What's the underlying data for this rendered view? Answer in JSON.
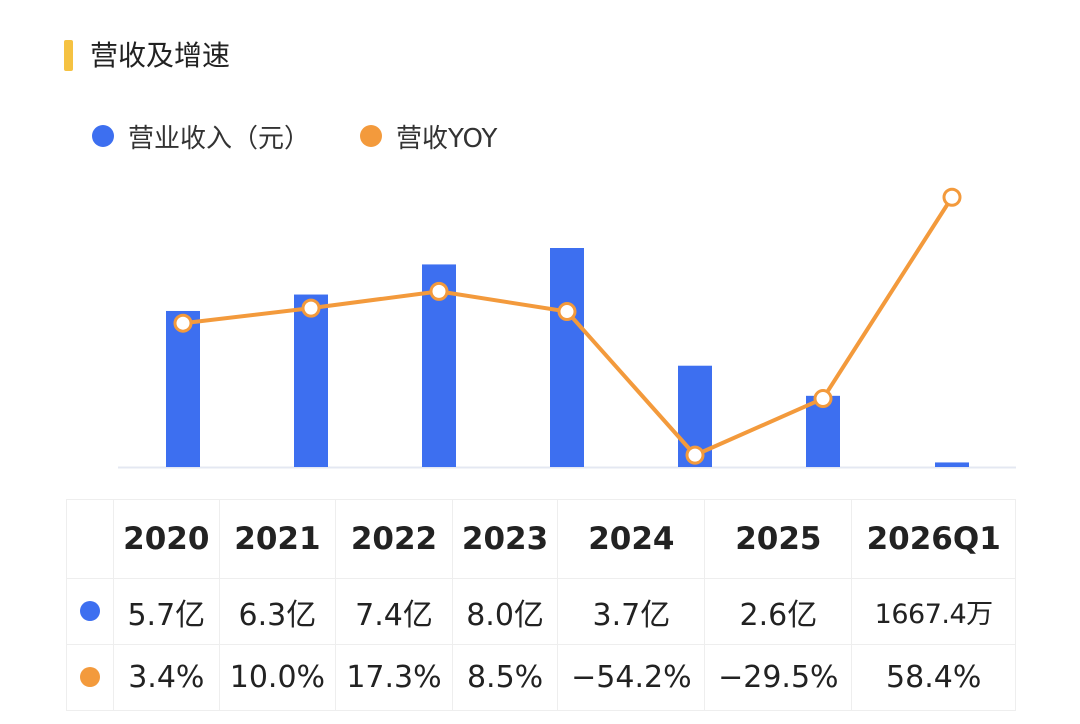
{
  "title": "营收及增速",
  "legend": {
    "revenue_label": "营业收入（元）",
    "yoy_label": "营收YOY"
  },
  "colors": {
    "revenue": "#3d6ff0",
    "yoy": "#f39a3c",
    "title_accent": "#f5c242",
    "axis": "#e4e8f2"
  },
  "chart_data": {
    "type": "bar",
    "categories": [
      "2020",
      "2021",
      "2022",
      "2023",
      "2024",
      "2025",
      "2026Q1"
    ],
    "series": [
      {
        "name": "营业收入（元）",
        "type": "bar",
        "values": [
          570000000,
          630000000,
          740000000,
          800000000,
          370000000,
          260000000,
          16674000
        ],
        "labels": [
          "5.7亿",
          "6.3亿",
          "7.4亿",
          "8.0亿",
          "3.7亿",
          "2.6亿",
          "1667.4万"
        ]
      },
      {
        "name": "营收YOY",
        "type": "line",
        "values": [
          3.4,
          10.0,
          17.3,
          8.5,
          -54.2,
          -29.5,
          58.4
        ],
        "labels": [
          "3.4%",
          "10.0%",
          "17.3%",
          "8.5%",
          "−54.2%",
          "−29.5%",
          "58.4%"
        ]
      }
    ],
    "legend_position": "top-left",
    "grid": false
  }
}
